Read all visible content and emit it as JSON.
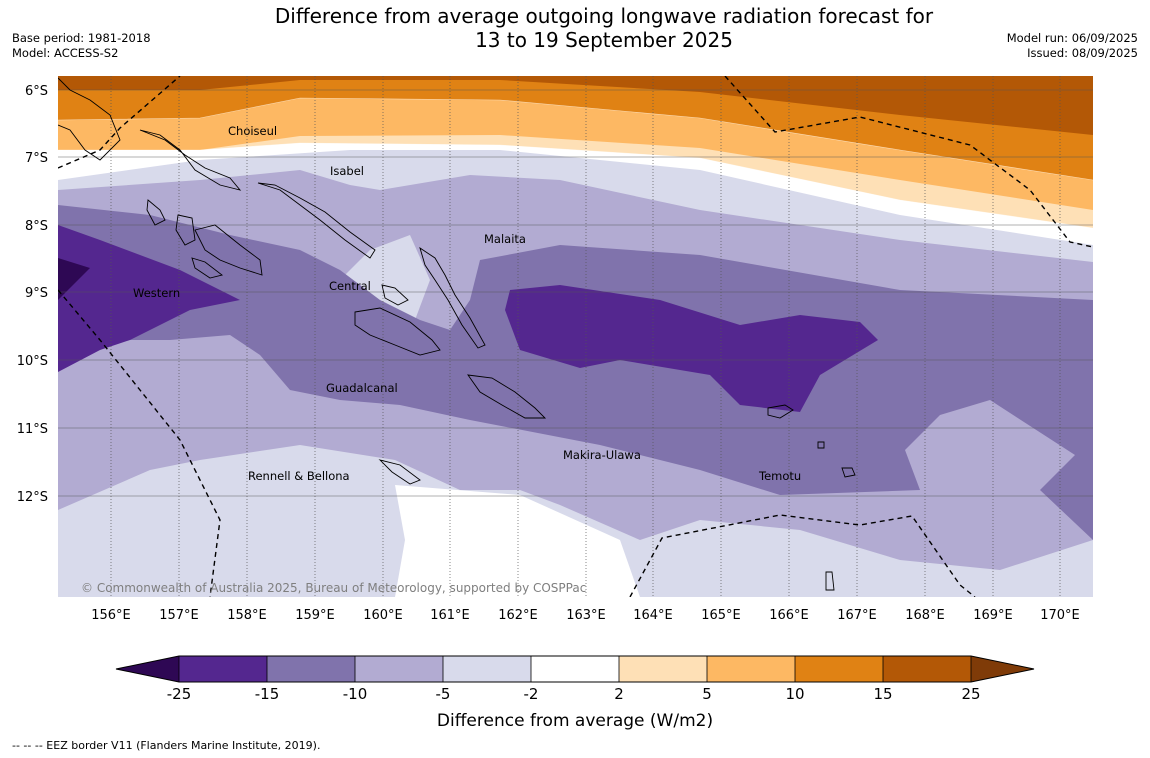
{
  "title": {
    "line1": "Difference from average outgoing longwave radiation forecast for",
    "line2": "13 to 19 September 2025"
  },
  "meta_left": {
    "base_period": "Base period: 1981-2018",
    "model": "Model: ACCESS-S2"
  },
  "meta_right": {
    "model_run": "Model run: 06/09/2025",
    "issued": "Issued: 08/09/2025"
  },
  "map": {
    "lat_labels": [
      "6°S",
      "7°S",
      "8°S",
      "9°S",
      "10°S",
      "11°S",
      "12°S"
    ],
    "lon_labels": [
      "156°E",
      "157°E",
      "158°E",
      "159°E",
      "160°E",
      "161°E",
      "162°E",
      "163°E",
      "164°E",
      "165°E",
      "166°E",
      "167°E",
      "168°E",
      "169°E",
      "170°E"
    ],
    "regions": [
      {
        "id": "choiseul",
        "label": "Choiseul"
      },
      {
        "id": "isabel",
        "label": "Isabel"
      },
      {
        "id": "malaita",
        "label": "Malaita"
      },
      {
        "id": "western",
        "label": "Western"
      },
      {
        "id": "central",
        "label": "Central"
      },
      {
        "id": "guadalcanal",
        "label": "Guadalcanal"
      },
      {
        "id": "makira-ulawa",
        "label": "Makira-Ulawa"
      },
      {
        "id": "rennell-bellona",
        "label": "Rennell & Bellona"
      },
      {
        "id": "temotu",
        "label": "Temotu"
      }
    ],
    "copyright": "© Commonwealth of Australia 2025, Bureau of Meteorology, supported by COSPPac"
  },
  "colorbar": {
    "ticks": [
      "-25",
      "-15",
      "-10",
      "-5",
      "-2",
      "2",
      "5",
      "10",
      "15",
      "25"
    ],
    "colors": [
      "#2e0854",
      "#54278f",
      "#8073ac",
      "#b2abd2",
      "#d8daeb",
      "#ffffff",
      "#fee0b6",
      "#fdb863",
      "#e08214",
      "#b35806",
      "#7f3b08"
    ],
    "label": "Difference from average (W/m2)"
  },
  "footer": "--  --  -- EEZ border V11 (Flanders Marine Institute, 2019)."
}
